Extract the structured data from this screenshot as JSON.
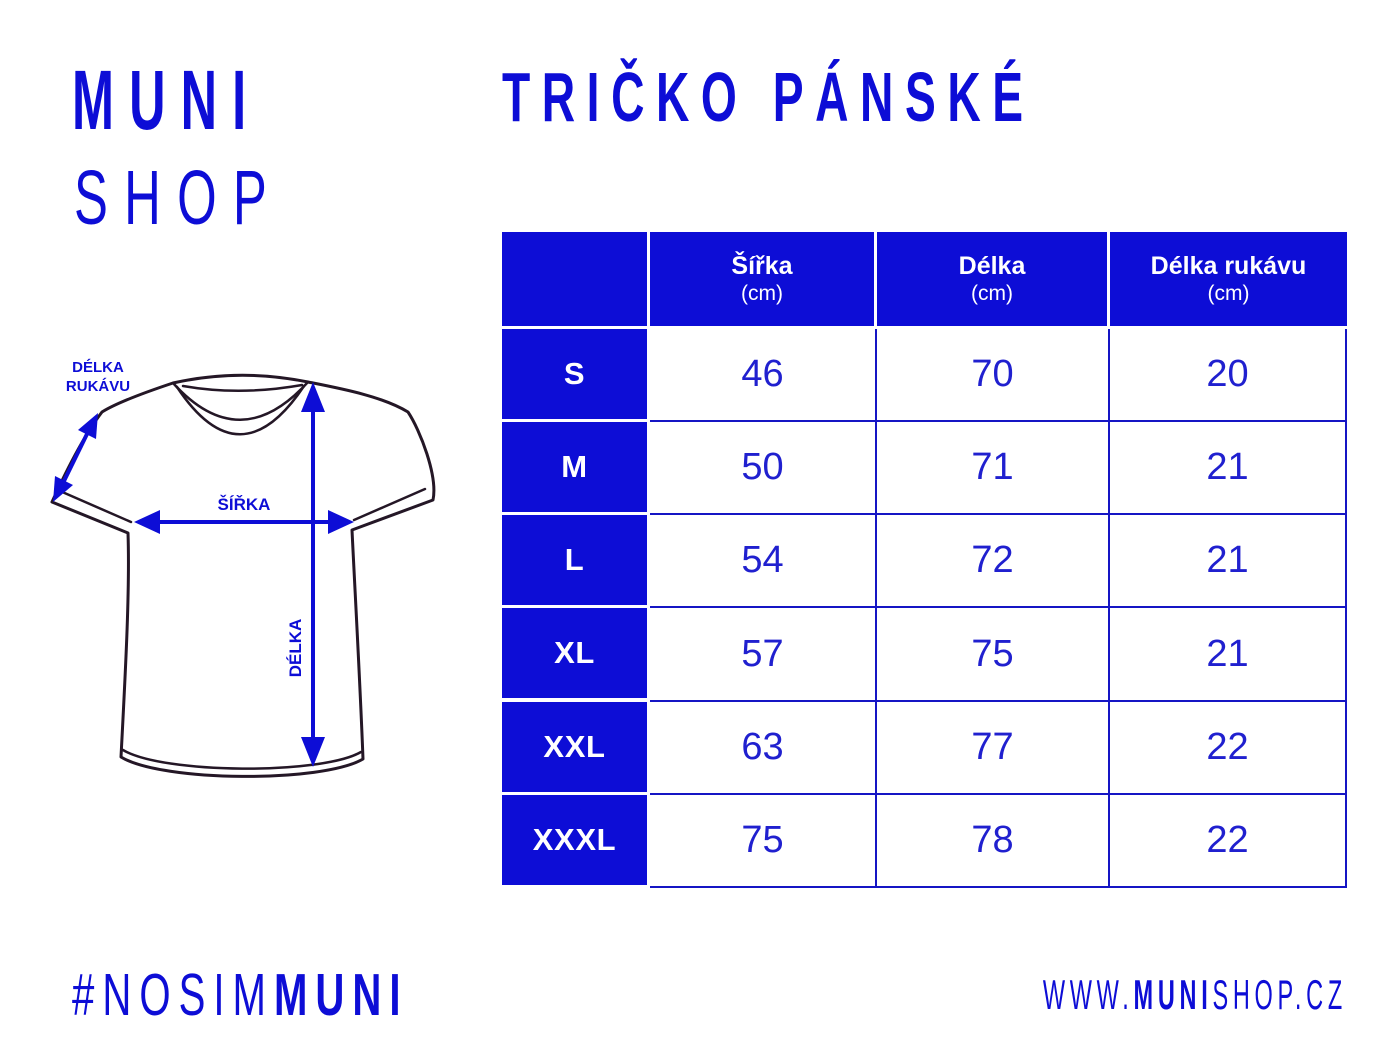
{
  "brand": {
    "line1": "MUNI",
    "line2": "SHOP"
  },
  "title": "TRIČKO PÁNSKÉ",
  "diagram": {
    "sleeve_label_line1": "DÉLKA",
    "sleeve_label_line2": "RUKÁVU",
    "width_label": "ŠÍŘKA",
    "length_label": "DÉLKA"
  },
  "size_table": {
    "columns": [
      {
        "name": "Šířka",
        "unit": "(cm)"
      },
      {
        "name": "Délka",
        "unit": "(cm)"
      },
      {
        "name": "Délka rukávu",
        "unit": "(cm)"
      }
    ],
    "rows": [
      {
        "size": "S",
        "values": [
          46,
          70,
          20
        ]
      },
      {
        "size": "M",
        "values": [
          50,
          71,
          21
        ]
      },
      {
        "size": "L",
        "values": [
          54,
          72,
          21
        ]
      },
      {
        "size": "XL",
        "values": [
          57,
          75,
          21
        ]
      },
      {
        "size": "XXL",
        "values": [
          63,
          77,
          22
        ]
      },
      {
        "size": "XXXL",
        "values": [
          75,
          78,
          22
        ]
      }
    ]
  },
  "footer": {
    "hashtag_prefix": "#NOSIM",
    "hashtag_brand": "MUNI",
    "website_prefix": "WWW.",
    "website_brand": "MUNI",
    "website_suffix": "SHOP.CZ"
  },
  "colors": {
    "brand_blue": "#0d0dd6",
    "value_blue": "#2020cf",
    "table_border_blue": "#1515c4",
    "shirt_outline": "#241726"
  }
}
